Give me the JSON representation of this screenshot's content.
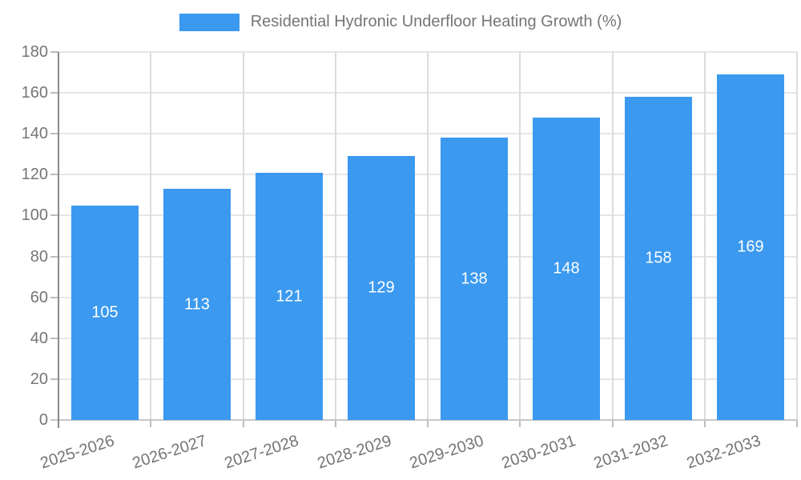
{
  "legend": {
    "label": "Residential Hydronic Underfloor Heating Growth (%)",
    "swatch_color": "#3b99ef"
  },
  "chart_data": {
    "type": "bar",
    "title": "Residential Hydronic Underfloor Heating Growth (%)",
    "categories": [
      "2025-2026",
      "2026-2027",
      "2027-2028",
      "2028-2029",
      "2029-2030",
      "2030-2031",
      "2031-2032",
      "2032-2033"
    ],
    "values": [
      105,
      113,
      121,
      129,
      138,
      148,
      158,
      169
    ],
    "xlabel": "",
    "ylabel": "",
    "ylim": [
      0,
      180
    ],
    "ytick_step": 20,
    "ytick_labels": [
      "0",
      "20",
      "40",
      "60",
      "80",
      "100",
      "120",
      "140",
      "160",
      "180"
    ],
    "grid": true,
    "legend_position": "top",
    "bar_color": "#3b99ef",
    "value_label_color": "#ffffff",
    "axis_text_color": "#757575"
  }
}
